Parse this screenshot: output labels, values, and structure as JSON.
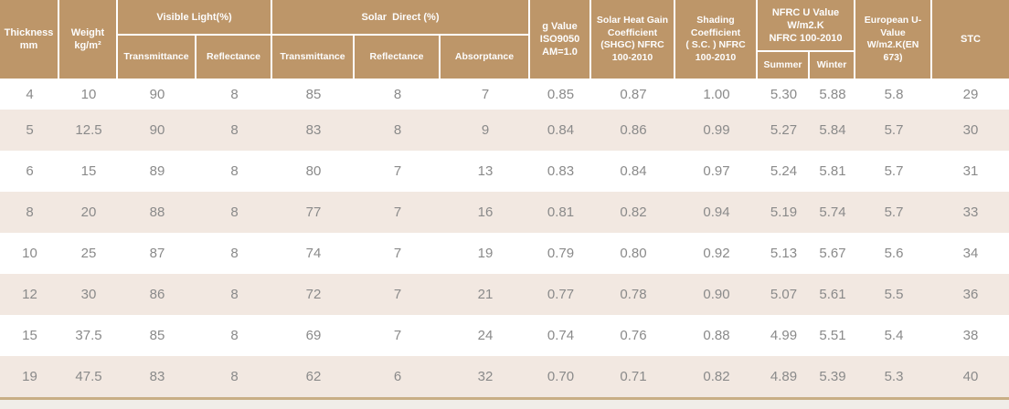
{
  "colors": {
    "header_bg": "#BD9669",
    "header_text": "#FDFDFD",
    "row_bg": "#FFFFFF",
    "row_alt_bg": "#F2E8E1",
    "data_text": "#8A8A8A",
    "bottom_line": "#C9AE85",
    "bottom_strip": "#F0EDE8"
  },
  "table": {
    "header": {
      "thickness": "Thickness\nmm",
      "weight": "Weight\nkg/m²",
      "visible_light": "Visible Light(%)",
      "vl_transmittance": "Transmittance",
      "vl_reflectance": "Reflectance",
      "solar_direct": "Solar  Direct (%)",
      "sd_transmittance": "Transmittance",
      "sd_reflectance": "Reflectance",
      "sd_absorptance": "Absorptance",
      "g_value": "g Value\nISO9050\nAM=1.0",
      "shgc": "Solar Heat Gain\nCoefficient\n(SHGC) NFRC\n100-2010",
      "shading_coefficient": "Shading\nCoefficient\n( S.C. ) NFRC\n100-2010",
      "nfrc_u_value": "NFRC U Value\nW/m2.K\nNFRC 100-2010",
      "summer": "Summer",
      "winter": "Winter",
      "european_u_value": "European U-\nValue\nW/m2.K(EN\n673)",
      "stc": "STC"
    },
    "rows": [
      [
        "4",
        "10",
        "90",
        "8",
        "85",
        "8",
        "7",
        "0.85",
        "0.87",
        "1.00",
        "5.30",
        "5.88",
        "5.8",
        "29"
      ],
      [
        "5",
        "12.5",
        "90",
        "8",
        "83",
        "8",
        "9",
        "0.84",
        "0.86",
        "0.99",
        "5.27",
        "5.84",
        "5.7",
        "30"
      ],
      [
        "6",
        "15",
        "89",
        "8",
        "80",
        "7",
        "13",
        "0.83",
        "0.84",
        "0.97",
        "5.24",
        "5.81",
        "5.7",
        "31"
      ],
      [
        "8",
        "20",
        "88",
        "8",
        "77",
        "7",
        "16",
        "0.81",
        "0.82",
        "0.94",
        "5.19",
        "5.74",
        "5.7",
        "33"
      ],
      [
        "10",
        "25",
        "87",
        "8",
        "74",
        "7",
        "19",
        "0.79",
        "0.80",
        "0.92",
        "5.13",
        "5.67",
        "5.6",
        "34"
      ],
      [
        "12",
        "30",
        "86",
        "8",
        "72",
        "7",
        "21",
        "0.77",
        "0.78",
        "0.90",
        "5.07",
        "5.61",
        "5.5",
        "36"
      ],
      [
        "15",
        "37.5",
        "85",
        "8",
        "69",
        "7",
        "24",
        "0.74",
        "0.76",
        "0.88",
        "4.99",
        "5.51",
        "5.4",
        "38"
      ],
      [
        "19",
        "47.5",
        "83",
        "8",
        "62",
        "6",
        "32",
        "0.70",
        "0.71",
        "0.82",
        "4.89",
        "5.39",
        "5.3",
        "40"
      ]
    ]
  }
}
